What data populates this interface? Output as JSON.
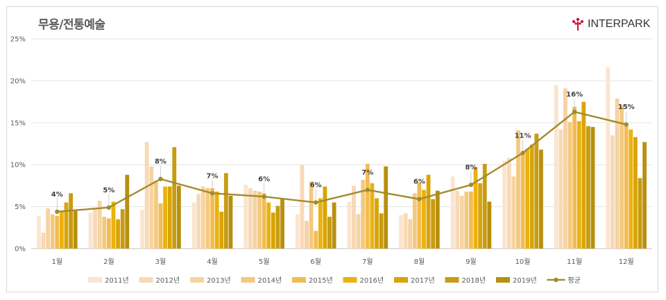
{
  "title": "무용/전통예술",
  "logo": {
    "text": "INTERPARK",
    "icon": "interpark-logo-icon",
    "color": "#c8102e"
  },
  "chart_data": {
    "type": "bar",
    "categories": [
      "1월",
      "2월",
      "3월",
      "4월",
      "5월",
      "6월",
      "7월",
      "8월",
      "9월",
      "10월",
      "11월",
      "12월"
    ],
    "ylim": [
      0,
      25
    ],
    "yticks": [
      "0%",
      "5%",
      "10%",
      "15%",
      "20%",
      "25%"
    ],
    "grid": true,
    "legend_position": "bottom",
    "series": [
      {
        "name": "2011년",
        "color": "#fbe5cf",
        "values": [
          3.9,
          4.3,
          4.6,
          5.5,
          7.6,
          4.1,
          5.6,
          4.0,
          8.6,
          10.5,
          19.5,
          21.6
        ]
      },
      {
        "name": "2012년",
        "color": "#f8d9b6",
        "values": [
          1.9,
          4.8,
          12.7,
          6.5,
          7.2,
          10.0,
          7.5,
          4.2,
          6.9,
          10.8,
          14.2,
          13.5
        ]
      },
      {
        "name": "2013년",
        "color": "#f6d3a3",
        "values": [
          4.8,
          5.7,
          9.8,
          7.4,
          6.9,
          3.3,
          4.1,
          3.5,
          6.3,
          8.6,
          19.1,
          17.9
        ]
      },
      {
        "name": "2014년",
        "color": "#f3c97f",
        "values": [
          4.1,
          3.8,
          8.1,
          7.2,
          6.8,
          8.0,
          8.2,
          6.6,
          6.8,
          14.1,
          15.1,
          17.1
        ]
      },
      {
        "name": "2015년",
        "color": "#f2bc52",
        "values": [
          3.9,
          3.6,
          5.4,
          7.2,
          6.6,
          2.1,
          10.1,
          7.9,
          6.8,
          11.5,
          16.9,
          14.9
        ]
      },
      {
        "name": "2016년",
        "color": "#eab20e",
        "values": [
          4.5,
          5.6,
          7.4,
          6.8,
          5.5,
          6.0,
          7.8,
          7.0,
          9.7,
          11.9,
          15.2,
          14.2
        ]
      },
      {
        "name": "2017년",
        "color": "#d9a406",
        "values": [
          5.5,
          3.5,
          7.4,
          4.4,
          4.3,
          7.4,
          6.0,
          8.8,
          7.8,
          12.4,
          17.5,
          13.3
        ]
      },
      {
        "name": "2018년",
        "color": "#c79c10",
        "values": [
          6.6,
          4.7,
          12.1,
          9.0,
          5.1,
          3.8,
          4.2,
          5.9,
          10.1,
          13.7,
          14.6,
          8.4
        ]
      },
      {
        "name": "2019년",
        "color": "#b8900f",
        "values": [
          4.5,
          8.8,
          7.5,
          6.3,
          6.0,
          5.5,
          9.8,
          6.9,
          5.6,
          11.8,
          14.5,
          12.7
        ]
      }
    ],
    "line": {
      "name": "평균",
      "color": "#a38a2c",
      "values": [
        4.4,
        4.9,
        8.3,
        6.6,
        6.2,
        5.5,
        7.0,
        5.9,
        7.6,
        11.4,
        16.3,
        14.8
      ],
      "labels": [
        "4%",
        "5%",
        "8%",
        "7%",
        "6%",
        "6%",
        "7%",
        "6%",
        "8%",
        "11%",
        "16%",
        "15%"
      ]
    }
  }
}
